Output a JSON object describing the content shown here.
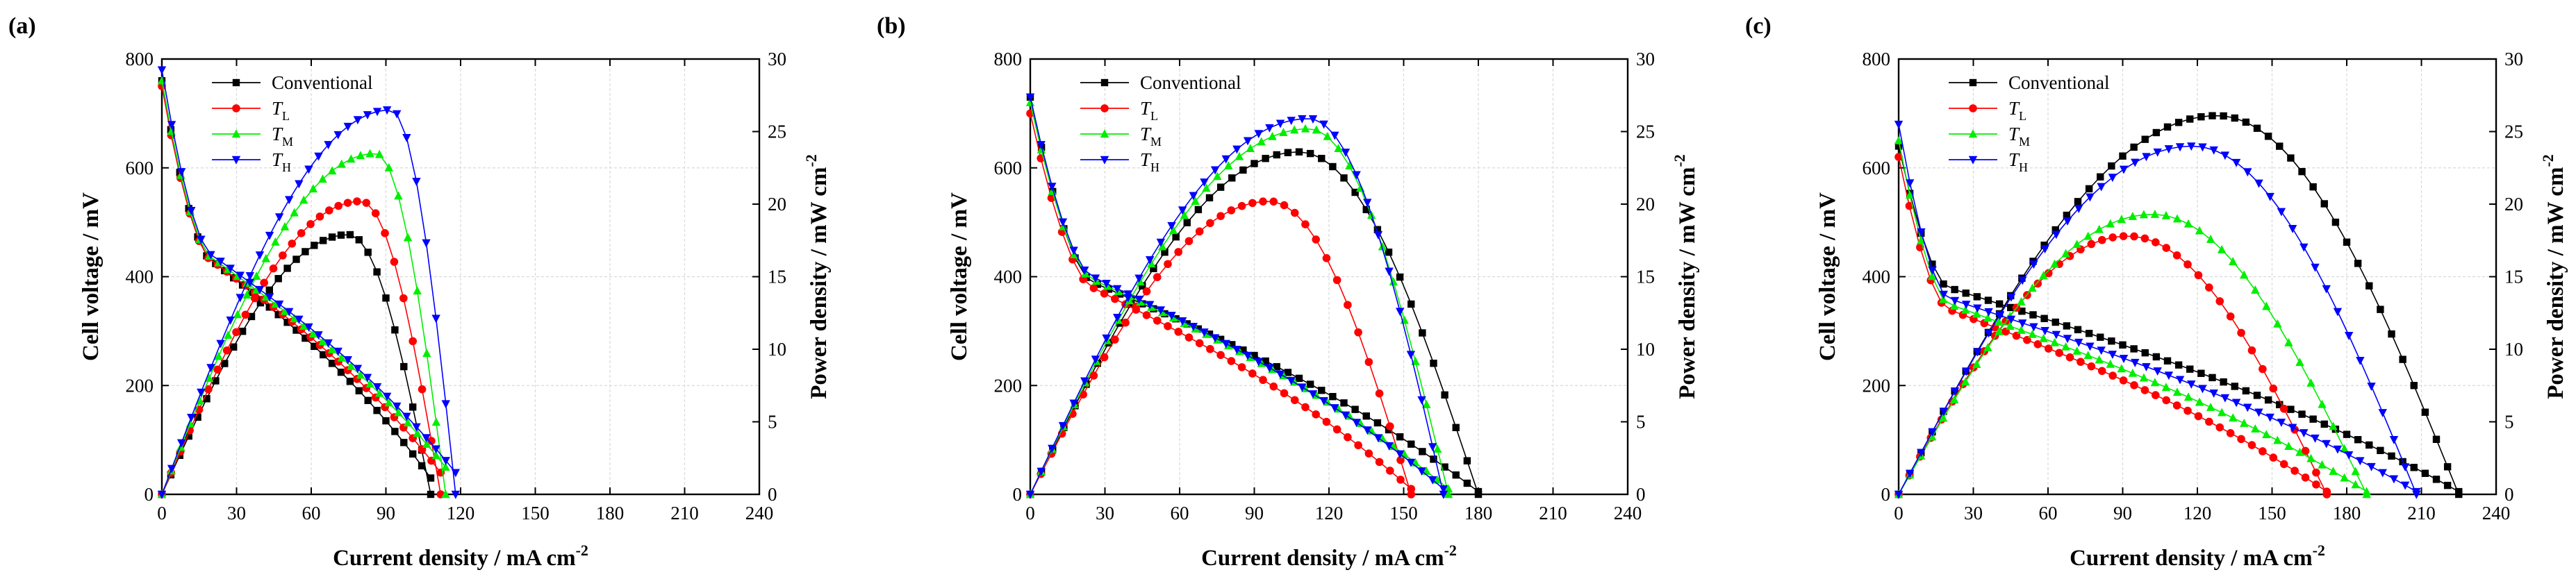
{
  "figure": {
    "panel_count": 3
  },
  "chart_data": [
    {
      "panel_label": "(a)",
      "type": "line",
      "xlabel": "Current density / mA cm",
      "xlabel_sup": "-2",
      "ylabel_left": "Cell voltage / mV",
      "ylabel_right": "Power density / mW cm",
      "ylabel_right_sup": "-2",
      "x_range": [
        0,
        240
      ],
      "y_left_range": [
        0,
        800
      ],
      "y_right_range": [
        0,
        30
      ],
      "x_ticks": [
        "0",
        "30",
        "60",
        "90",
        "120",
        "150",
        "180",
        "210",
        "240"
      ],
      "y_left_ticks": [
        "0",
        "200",
        "400",
        "600",
        "800"
      ],
      "y_right_ticks": [
        "0",
        "5",
        "10",
        "15",
        "20",
        "25",
        "30"
      ],
      "grid": true,
      "legend_position": "top-left",
      "series": [
        {
          "name": "Conventional",
          "sub": "",
          "color": "#000000",
          "marker": "square",
          "voltage": {
            "ocv": 760,
            "knee_x": 20,
            "knee_v": 430,
            "x_end": 108,
            "v_end": 30,
            "n": 30
          },
          "power": {
            "x_end": 108,
            "peak_x": 75,
            "peak_p": 17.9
          }
        },
        {
          "name": "T",
          "sub": "L",
          "color": "#ff0000",
          "marker": "circle",
          "voltage": {
            "ocv": 750,
            "knee_x": 20,
            "knee_v": 430,
            "x_end": 112,
            "v_end": 40,
            "n": 30
          },
          "power": {
            "x_end": 112,
            "peak_x": 80,
            "peak_p": 20.2
          }
        },
        {
          "name": "T",
          "sub": "M",
          "color": "#00ee00",
          "marker": "triangle-up",
          "voltage": {
            "ocv": 760,
            "knee_x": 20,
            "knee_v": 435,
            "x_end": 114,
            "v_end": 50,
            "n": 30
          },
          "power": {
            "x_end": 114,
            "peak_x": 86,
            "peak_p": 23.5
          }
        },
        {
          "name": "T",
          "sub": "H",
          "color": "#0000ff",
          "marker": "triangle-down",
          "voltage": {
            "ocv": 780,
            "knee_x": 20,
            "knee_v": 440,
            "x_end": 118,
            "v_end": 40,
            "n": 30
          },
          "power": {
            "x_end": 118,
            "peak_x": 92,
            "peak_p": 26.5
          }
        }
      ]
    },
    {
      "panel_label": "(b)",
      "type": "line",
      "xlabel": "Current density / mA cm",
      "xlabel_sup": "-2",
      "ylabel_left": "Cell voltage / mV",
      "ylabel_right": "Power density / mW cm",
      "ylabel_right_sup": "-2",
      "x_range": [
        0,
        240
      ],
      "y_left_range": [
        0,
        800
      ],
      "y_right_range": [
        0,
        30
      ],
      "x_ticks": [
        "0",
        "30",
        "60",
        "90",
        "120",
        "150",
        "180",
        "210",
        "240"
      ],
      "y_left_ticks": [
        "0",
        "200",
        "400",
        "600",
        "800"
      ],
      "y_right_ticks": [
        "0",
        "5",
        "10",
        "15",
        "20",
        "25",
        "30"
      ],
      "grid": true,
      "legend_position": "top-left",
      "series": [
        {
          "name": "Conventional",
          "sub": "",
          "color": "#000000",
          "marker": "square",
          "voltage": {
            "ocv": 730,
            "knee_x": 25,
            "knee_v": 390,
            "x_end": 180,
            "v_end": 5,
            "n": 40
          },
          "power": {
            "x_end": 180,
            "peak_x": 108,
            "peak_p": 23.6
          }
        },
        {
          "name": "T",
          "sub": "L",
          "color": "#ff0000",
          "marker": "circle",
          "voltage": {
            "ocv": 700,
            "knee_x": 25,
            "knee_v": 380,
            "x_end": 153,
            "v_end": 10,
            "n": 36
          },
          "power": {
            "x_end": 153,
            "peak_x": 96,
            "peak_p": 20.2
          }
        },
        {
          "name": "T",
          "sub": "M",
          "color": "#00ee00",
          "marker": "triangle-up",
          "voltage": {
            "ocv": 720,
            "knee_x": 25,
            "knee_v": 395,
            "x_end": 168,
            "v_end": 10,
            "n": 38
          },
          "power": {
            "x_end": 168,
            "peak_x": 112,
            "peak_p": 25.2
          }
        },
        {
          "name": "T",
          "sub": "H",
          "color": "#0000ff",
          "marker": "triangle-down",
          "voltage": {
            "ocv": 730,
            "knee_x": 25,
            "knee_v": 400,
            "x_end": 166,
            "v_end": 10,
            "n": 38
          },
          "power": {
            "x_end": 166,
            "peak_x": 112,
            "peak_p": 25.9
          }
        }
      ]
    },
    {
      "panel_label": "(c)",
      "type": "line",
      "xlabel": "Current density / mA cm",
      "xlabel_sup": "-2",
      "ylabel_left": "Cell voltage / mV",
      "ylabel_right": "Power density / mW cm",
      "ylabel_right_sup": "-2",
      "x_range": [
        0,
        240
      ],
      "y_left_range": [
        0,
        800
      ],
      "y_right_range": [
        0,
        30
      ],
      "x_ticks": [
        "0",
        "30",
        "60",
        "90",
        "120",
        "150",
        "180",
        "210",
        "240"
      ],
      "y_left_ticks": [
        "0",
        "200",
        "400",
        "600",
        "800"
      ],
      "y_right_ticks": [
        "0",
        "5",
        "10",
        "15",
        "20",
        "25",
        "30"
      ],
      "grid": true,
      "legend_position": "top-left",
      "series": [
        {
          "name": "Conventional",
          "sub": "",
          "color": "#000000",
          "marker": "square",
          "voltage": {
            "ocv": 640,
            "knee_x": 20,
            "knee_v": 380,
            "x_end": 225,
            "v_end": 5,
            "n": 50
          },
          "power": {
            "x_end": 225,
            "peak_x": 128,
            "peak_p": 26.1
          }
        },
        {
          "name": "T",
          "sub": "L",
          "color": "#ff0000",
          "marker": "circle",
          "voltage": {
            "ocv": 620,
            "knee_x": 20,
            "knee_v": 340,
            "x_end": 172,
            "v_end": 5,
            "n": 40
          },
          "power": {
            "x_end": 172,
            "peak_x": 92,
            "peak_p": 17.8
          }
        },
        {
          "name": "T",
          "sub": "M",
          "color": "#00ee00",
          "marker": "triangle-up",
          "voltage": {
            "ocv": 650,
            "knee_x": 20,
            "knee_v": 350,
            "x_end": 188,
            "v_end": 5,
            "n": 42
          },
          "power": {
            "x_end": 188,
            "peak_x": 102,
            "peak_p": 19.3
          }
        },
        {
          "name": "T",
          "sub": "H",
          "color": "#0000ff",
          "marker": "triangle-down",
          "voltage": {
            "ocv": 680,
            "knee_x": 20,
            "knee_v": 360,
            "x_end": 208,
            "v_end": 5,
            "n": 46
          },
          "power": {
            "x_end": 208,
            "peak_x": 118,
            "peak_p": 24.0
          }
        }
      ]
    }
  ]
}
